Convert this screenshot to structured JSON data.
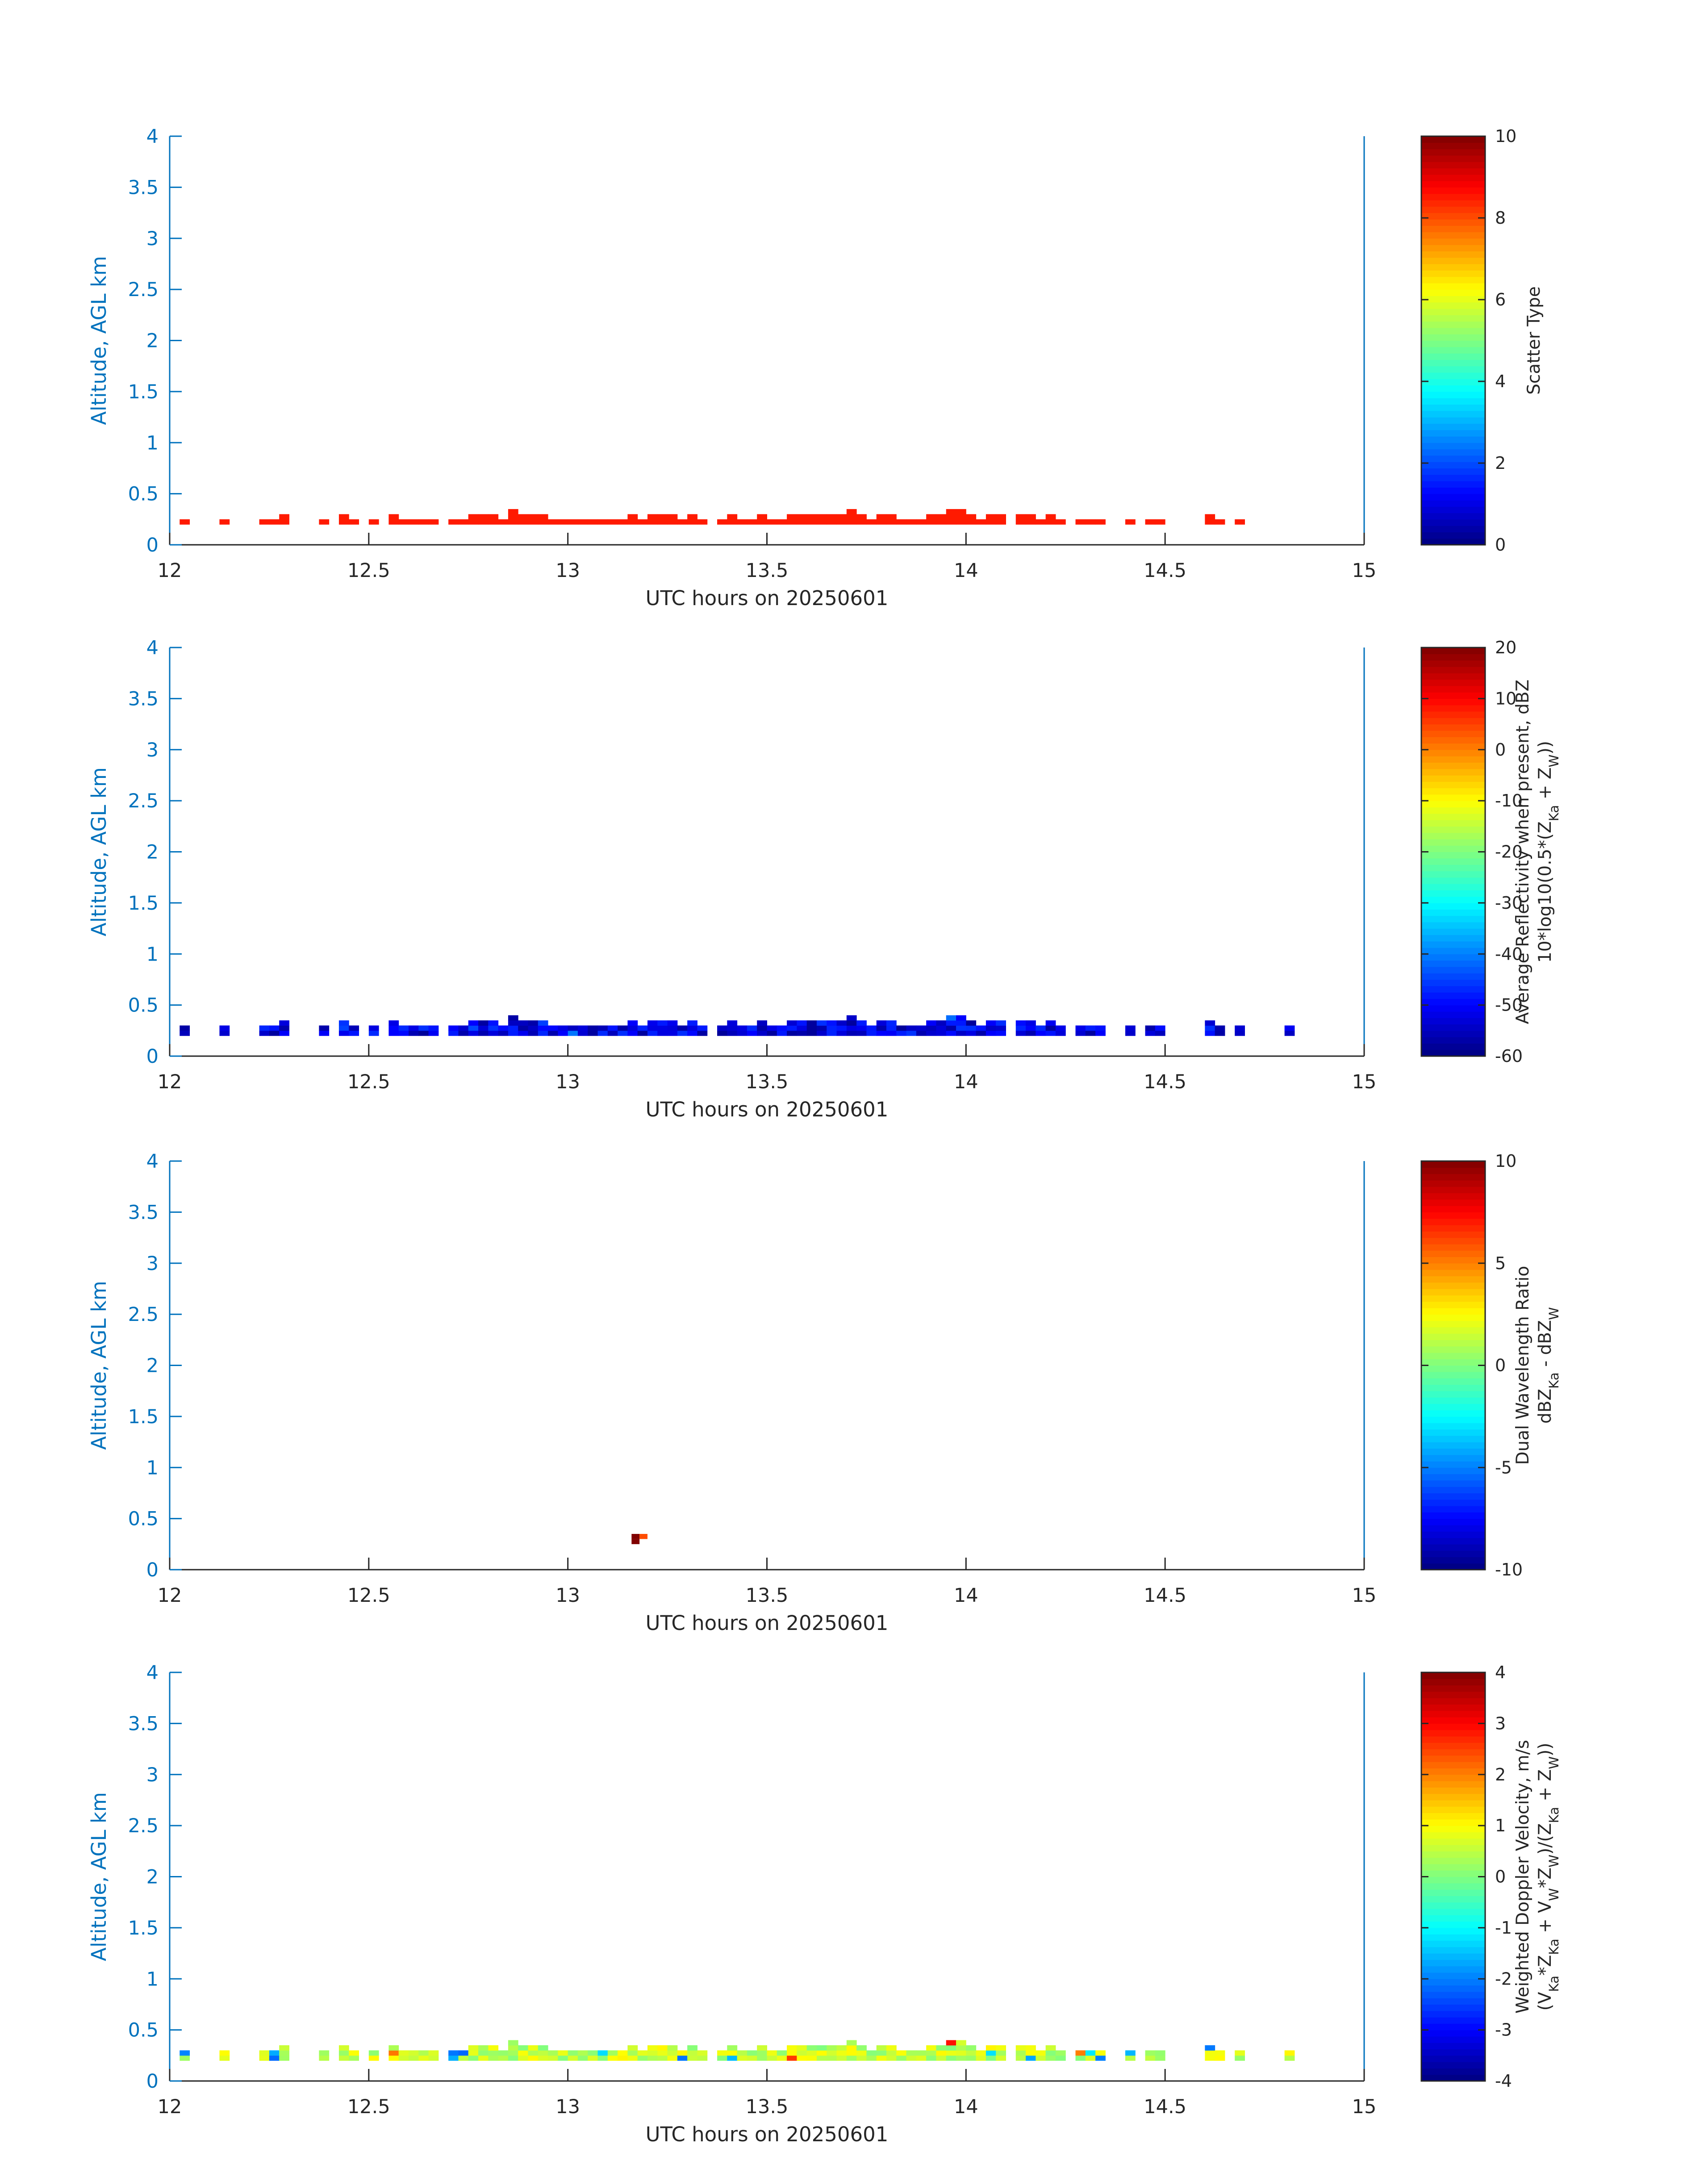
{
  "chart_data": [
    {
      "type": "heatmap",
      "xlabel": "UTC hours on 20250601",
      "ylabel": "Altitude, AGL km",
      "xlim": [
        12,
        15
      ],
      "ylim": [
        0,
        4
      ],
      "x_ticks": [
        "12",
        "12.5",
        "13",
        "13.5",
        "14",
        "14.5",
        "15"
      ],
      "y_ticks": [
        "0",
        "0.5",
        "1",
        "1.5",
        "2",
        "2.5",
        "3",
        "3.5",
        "4"
      ],
      "colorbar": {
        "label_lines": [
          "Scatter Type"
        ],
        "range": [
          0,
          10
        ],
        "ticks": [
          "0",
          "2",
          "4",
          "6",
          "8",
          "10"
        ]
      },
      "colormap": "jet",
      "data_summary": {
        "occupied_time_range": [
          12.0,
          14.75
        ],
        "altitude_range_km": [
          0.2,
          0.45
        ],
        "typical_value": 8.5
      }
    },
    {
      "type": "heatmap",
      "xlabel": "UTC hours on 20250601",
      "ylabel": "Altitude, AGL km",
      "xlim": [
        12,
        15
      ],
      "ylim": [
        0,
        4
      ],
      "x_ticks": [
        "12",
        "12.5",
        "13",
        "13.5",
        "14",
        "14.5",
        "15"
      ],
      "y_ticks": [
        "0",
        "0.5",
        "1",
        "1.5",
        "2",
        "2.5",
        "3",
        "3.5",
        "4"
      ],
      "colorbar": {
        "label_lines": [
          "Average Reflectivity when present, dBZ",
          "10*log10(0.5*(Z_Ka + Z_W))"
        ],
        "range": [
          -60,
          20
        ],
        "ticks": [
          "-60",
          "-50",
          "-40",
          "-30",
          "-20",
          "-10",
          "0",
          "10",
          "20"
        ]
      },
      "colormap": "jet",
      "data_summary": {
        "occupied_time_range": [
          12.0,
          14.85
        ],
        "altitude_range_km": [
          0.2,
          0.48
        ],
        "typical_value_range": [
          -60,
          -45
        ]
      }
    },
    {
      "type": "heatmap",
      "xlabel": "UTC hours on 20250601",
      "ylabel": "Altitude, AGL km",
      "xlim": [
        12,
        15
      ],
      "ylim": [
        0,
        4
      ],
      "x_ticks": [
        "12",
        "12.5",
        "13",
        "13.5",
        "14",
        "14.5",
        "15"
      ],
      "y_ticks": [
        "0",
        "0.5",
        "1",
        "1.5",
        "2",
        "2.5",
        "3",
        "3.5",
        "4"
      ],
      "colorbar": {
        "label_lines": [
          "Dual Wavelength Ratio",
          "dBZ_Ka - dBZ_W"
        ],
        "range": [
          -10,
          10
        ],
        "ticks": [
          "-10",
          "-5",
          "0",
          "5",
          "10"
        ]
      },
      "colormap": "jet",
      "points": [
        {
          "x": 13.16,
          "y": 0.25,
          "value": 10
        },
        {
          "x": 13.16,
          "y": 0.3,
          "value": 10
        },
        {
          "x": 13.18,
          "y": 0.3,
          "value": 6
        }
      ]
    },
    {
      "type": "heatmap",
      "xlabel": "UTC hours on 20250601",
      "ylabel": "Altitude, AGL km",
      "xlim": [
        12,
        15
      ],
      "ylim": [
        0,
        4
      ],
      "x_ticks": [
        "12",
        "12.5",
        "13",
        "13.5",
        "14",
        "14.5",
        "15"
      ],
      "y_ticks": [
        "0",
        "0.5",
        "1",
        "1.5",
        "2",
        "2.5",
        "3",
        "3.5",
        "4"
      ],
      "colorbar": {
        "label_lines": [
          "Weighted Doppler Velocity, m/s",
          "(V_Ka*Z_Ka + V_W*Z_W)/(Z_Ka + Z_W))"
        ],
        "range": [
          -4,
          4
        ],
        "ticks": [
          "-4",
          "-3",
          "-2",
          "-1",
          "0",
          "1",
          "2",
          "3",
          "4"
        ]
      },
      "colormap": "jet",
      "data_summary": {
        "occupied_time_range": [
          12.0,
          14.85
        ],
        "altitude_range_km": [
          0.2,
          0.48
        ],
        "typical_value_range": [
          0,
          1
        ]
      }
    }
  ]
}
